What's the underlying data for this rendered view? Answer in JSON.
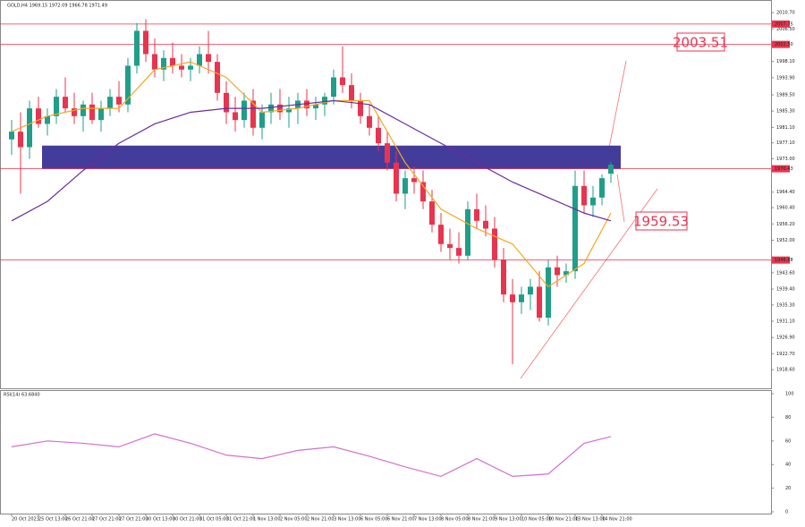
{
  "chart_data": [
    {
      "type": "candlestick",
      "title": "GOLD,H4 1969.15 1972.09 1966.78 1971.49",
      "colors": {
        "up": "#1f9e8a",
        "down": "#e8344e"
      },
      "candles": [
        [
          1978,
          1983,
          1974,
          1980
        ],
        [
          1980,
          1985,
          1964,
          1976
        ],
        [
          1976,
          1988,
          1973,
          1986
        ],
        [
          1986,
          1989,
          1981,
          1982
        ],
        [
          1982,
          1986,
          1979,
          1984
        ],
        [
          1984,
          1991,
          1982,
          1989
        ],
        [
          1989,
          1994,
          1985,
          1986
        ],
        [
          1986,
          1990,
          1982,
          1984
        ],
        [
          1984,
          1988,
          1980,
          1987
        ],
        [
          1987,
          1990,
          1982,
          1983
        ],
        [
          1983,
          1988,
          1980,
          1986
        ],
        [
          1986,
          1991,
          1984,
          1989
        ],
        [
          1989,
          1993,
          1985,
          1987
        ],
        [
          1987,
          1999,
          1985,
          1997
        ],
        [
          1997,
          2008,
          1995,
          2006
        ],
        [
          2006,
          2009,
          1998,
          2000
        ],
        [
          2000,
          2004,
          1994,
          1996
        ],
        [
          1996,
          2001,
          1993,
          1999
        ],
        [
          1999,
          2003,
          1995,
          1997
        ],
        [
          1997,
          2000,
          1994,
          1996
        ],
        [
          1996,
          1999,
          1993,
          1997
        ],
        [
          1997,
          2002,
          1995,
          2000
        ],
        [
          2000,
          2006,
          1995,
          1998
        ],
        [
          1998,
          2000,
          1988,
          1990
        ],
        [
          1990,
          1993,
          1982,
          1985
        ],
        [
          1985,
          1989,
          1980,
          1983
        ],
        [
          1983,
          1990,
          1981,
          1988
        ],
        [
          1988,
          1991,
          1979,
          1981
        ],
        [
          1981,
          1987,
          1978,
          1985
        ],
        [
          1985,
          1990,
          1982,
          1987
        ],
        [
          1987,
          1991,
          1983,
          1985
        ],
        [
          1985,
          1989,
          1981,
          1986
        ],
        [
          1986,
          1990,
          1982,
          1988
        ],
        [
          1988,
          1991,
          1984,
          1986
        ],
        [
          1986,
          1989,
          1983,
          1987
        ],
        [
          1987,
          1990,
          1984,
          1989
        ],
        [
          1989,
          1996,
          1987,
          1994
        ],
        [
          1994,
          2002,
          1990,
          1992
        ],
        [
          1992,
          1995,
          1986,
          1988
        ],
        [
          1988,
          1990,
          1982,
          1984
        ],
        [
          1984,
          1987,
          1979,
          1981
        ],
        [
          1981,
          1984,
          1975,
          1977
        ],
        [
          1977,
          1980,
          1970,
          1972
        ],
        [
          1972,
          1975,
          1962,
          1964
        ],
        [
          1964,
          1970,
          1960,
          1968
        ],
        [
          1968,
          1971,
          1964,
          1967
        ],
        [
          1967,
          1970,
          1960,
          1962
        ],
        [
          1962,
          1965,
          1954,
          1956
        ],
        [
          1956,
          1959,
          1949,
          1951
        ],
        [
          1951,
          1955,
          1947,
          1950
        ],
        [
          1950,
          1954,
          1946,
          1948
        ],
        [
          1948,
          1962,
          1947,
          1960
        ],
        [
          1960,
          1964,
          1955,
          1957
        ],
        [
          1957,
          1961,
          1953,
          1955
        ],
        [
          1955,
          1958,
          1945,
          1947
        ],
        [
          1947,
          1950,
          1936,
          1938
        ],
        [
          1938,
          1942,
          1920,
          1936
        ],
        [
          1936,
          1940,
          1933,
          1938
        ],
        [
          1938,
          1942,
          1934,
          1940
        ],
        [
          1940,
          1944,
          1931,
          1932
        ],
        [
          1932,
          1947,
          1930,
          1945
        ],
        [
          1945,
          1948,
          1940,
          1943
        ],
        [
          1943,
          1946,
          1941,
          1944
        ],
        [
          1944,
          1970,
          1942,
          1966
        ],
        [
          1966,
          1970,
          1959,
          1961
        ],
        [
          1961,
          1966,
          1958,
          1963
        ],
        [
          1963,
          1969,
          1961,
          1968
        ],
        [
          1969.15,
          1972.09,
          1966.78,
          1971.49
        ]
      ],
      "series": [
        {
          "color": "#f5a623",
          "x": [
            0,
            4,
            8,
            12,
            16,
            20,
            24,
            28,
            32,
            36,
            40,
            44,
            48,
            52,
            56,
            60,
            64,
            67
          ],
          "values": [
            1980,
            1984,
            1986,
            1986,
            1996,
            1998,
            1994,
            1985,
            1986,
            1988,
            1988,
            1972,
            1960,
            1955,
            1951,
            1940,
            1946,
            1959
          ]
        },
        {
          "color": "#6a2c9e",
          "x": [
            0,
            4,
            8,
            12,
            16,
            20,
            24,
            28,
            32,
            36,
            40,
            44,
            48,
            52,
            56,
            60,
            64,
            67
          ],
          "values": [
            1957,
            1962,
            1970,
            1977,
            1982,
            1985,
            1986,
            1986,
            1987,
            1988,
            1987,
            1982,
            1977,
            1972,
            1967,
            1963,
            1959,
            1957
          ]
        }
      ],
      "ylim": [
        1913.8,
        2012.8
      ],
      "yticks": [
        {
          "value": 2010.7,
          "label": "2010.70"
        },
        {
          "value": 2006.5,
          "label": "2006.50"
        },
        {
          "value": 1998.1,
          "label": "1998.10"
        },
        {
          "value": 1993.9,
          "label": "1993.90"
        },
        {
          "value": 1989.5,
          "label": "1989.50"
        },
        {
          "value": 1985.3,
          "label": "1985.30"
        },
        {
          "value": 1981.1,
          "label": "1981.10"
        },
        {
          "value": 1977.1,
          "label": "1977.10"
        },
        {
          "value": 1973,
          "label": "1973.00"
        },
        {
          "value": 1964.4,
          "label": "1964.40"
        },
        {
          "value": 1960.4,
          "label": "1960.40"
        },
        {
          "value": 1956.2,
          "label": "1956.20"
        },
        {
          "value": 1952,
          "label": "1952.00"
        },
        {
          "value": 1943.6,
          "label": "1943.60"
        },
        {
          "value": 1939.4,
          "label": "1939.40"
        },
        {
          "value": 1935.3,
          "label": "1935.30"
        },
        {
          "value": 1931.1,
          "label": "1931.10"
        },
        {
          "value": 1926.9,
          "label": "1926.90"
        },
        {
          "value": 1922.7,
          "label": "1922.70"
        },
        {
          "value": 1918.6,
          "label": "1918.60"
        }
      ],
      "hlines": [
        {
          "value": 2007.75,
          "label": "2007.75"
        },
        {
          "value": 2002.5,
          "label": "2002.50"
        },
        {
          "value": 1970.43,
          "label": "1970.43"
        },
        {
          "value": 1946.88,
          "label": "1946.88"
        }
      ],
      "zone": {
        "from": 1970.4,
        "to": 1976.4,
        "color": "#3a3296"
      },
      "annotations": [
        "2003.51",
        "1959.53"
      ],
      "xticks": [
        {
          "value": 0,
          "label": "20 Oct 2023"
        },
        {
          "value": 3,
          "label": "25 Oct 13:00"
        },
        {
          "value": 6,
          "label": "26 Oct 21:00"
        },
        {
          "value": 9,
          "label": "27 Oct 21:00"
        },
        {
          "value": 12,
          "label": "27 Oct 21:00"
        },
        {
          "value": 15,
          "label": "30 Oct 13:00"
        },
        {
          "value": 18,
          "label": "30 Oct 21:00"
        },
        {
          "value": 21,
          "label": "31 Oct 05:00"
        },
        {
          "value": 24,
          "label": "31 Oct 21:00"
        },
        {
          "value": 27,
          "label": "1 Nov 13:00"
        },
        {
          "value": 30,
          "label": "2 Nov 05:00"
        },
        {
          "value": 33,
          "label": "2 Nov 21:00"
        },
        {
          "value": 36,
          "label": "3 Nov 13:00"
        },
        {
          "value": 39,
          "label": "6 Nov 05:00"
        },
        {
          "value": 42,
          "label": "6 Nov 21:00"
        },
        {
          "value": 45,
          "label": "7 Nov 13:00"
        },
        {
          "value": 48,
          "label": "8 Nov 05:00"
        },
        {
          "value": 51,
          "label": "8 Nov 21:00"
        },
        {
          "value": 54,
          "label": "9 Nov 13:00"
        },
        {
          "value": 57,
          "label": "10 Nov 05:00"
        },
        {
          "value": 60,
          "label": "10 Nov 21:00"
        },
        {
          "value": 63,
          "label": "13 Nov 13:00"
        },
        {
          "value": 66,
          "label": "14 Nov 21:00"
        }
      ]
    },
    {
      "type": "line",
      "title": "RSI(14) 63.6840",
      "series": [
        {
          "color": "#d070d0",
          "x": [
            0,
            4,
            8,
            12,
            16,
            20,
            24,
            28,
            32,
            36,
            40,
            44,
            48,
            52,
            56,
            60,
            64,
            67
          ],
          "values": [
            55,
            60,
            58,
            55,
            66,
            58,
            48,
            45,
            52,
            55,
            47,
            38,
            30,
            45,
            30,
            32,
            58,
            63.684
          ]
        }
      ],
      "ylim": [
        0,
        100
      ],
      "yticks": [
        100,
        80,
        60,
        40,
        20,
        0
      ]
    }
  ]
}
